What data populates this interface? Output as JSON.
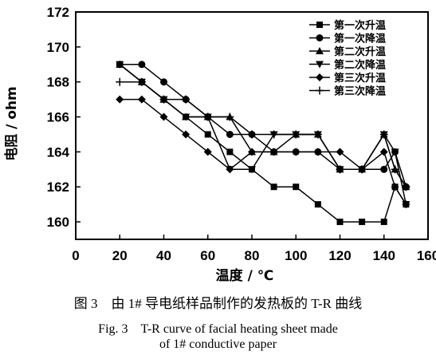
{
  "chart_data": {
    "type": "line",
    "xlabel": "温度 / ℃",
    "ylabel": "电阻 / ohm",
    "xlim": [
      0,
      160
    ],
    "ylim": [
      159,
      172
    ],
    "xticks": [
      0,
      20,
      40,
      60,
      80,
      100,
      120,
      140,
      160
    ],
    "yticks": [
      160,
      162,
      164,
      166,
      168,
      170,
      172
    ],
    "grid": false,
    "legend_position": "top-right",
    "x": [
      20,
      30,
      40,
      50,
      60,
      70,
      80,
      90,
      100,
      110,
      120,
      130,
      140,
      145,
      150
    ],
    "series": [
      {
        "name": "第一次升温",
        "marker": "square",
        "values": [
          169,
          168,
          167,
          166,
          165,
          164,
          163,
          162,
          162,
          161,
          160,
          160,
          160,
          162,
          161
        ]
      },
      {
        "name": "第一次降温",
        "marker": "circle",
        "values": [
          169,
          169,
          168,
          167,
          166,
          165,
          165,
          164,
          164,
          164,
          163,
          163,
          163,
          164,
          162
        ]
      },
      {
        "name": "第二次升温",
        "marker": "triangle-up",
        "values": [
          169,
          168,
          167,
          166,
          166,
          166,
          164,
          164,
          165,
          165,
          163,
          163,
          165,
          163,
          162
        ]
      },
      {
        "name": "第二次降温",
        "marker": "triangle-down",
        "values": [
          169,
          168,
          167,
          166,
          166,
          163,
          163,
          165,
          165,
          165,
          163,
          163,
          165,
          164,
          161
        ]
      },
      {
        "name": "第三次升温",
        "marker": "diamond",
        "values": [
          167,
          167,
          166,
          165,
          164,
          163,
          164,
          164,
          164,
          164,
          164,
          163,
          164,
          162,
          161
        ]
      },
      {
        "name": "第三次降温",
        "marker": "plus",
        "values": [
          168,
          168,
          167,
          167,
          166,
          166,
          165,
          165,
          165,
          165,
          163,
          163,
          165,
          163,
          162
        ]
      }
    ]
  },
  "caption": {
    "cn": "图 3　由 1# 导电纸样品制作的发热板的 T-R 曲线",
    "en1": "Fig. 3　T-R curve of facial heating sheet made",
    "en2": "of 1# conductive paper"
  },
  "colors": {
    "ink": "#000000",
    "background": "#ffffff"
  }
}
